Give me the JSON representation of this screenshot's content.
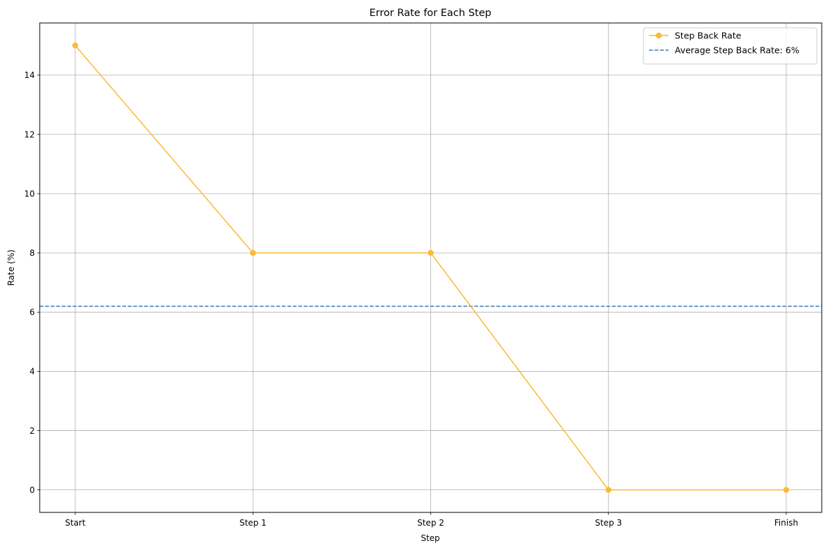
{
  "chart_data": {
    "type": "line",
    "title": "Error Rate for Each Step",
    "xlabel": "Step",
    "ylabel": "Rate (%)",
    "categories": [
      "Start",
      "Step 1",
      "Step 2",
      "Step 3",
      "Finish"
    ],
    "series": [
      {
        "name": "Step Back Rate",
        "values": [
          15,
          8,
          8,
          0,
          0
        ],
        "color": "#fbb935",
        "marker": "circle"
      }
    ],
    "reference_line": {
      "name": "Average Step Back Rate: 6%",
      "value": 6.2,
      "color": "#3a7ab5",
      "style": "dashed"
    },
    "yticks": [
      0,
      2,
      4,
      6,
      8,
      10,
      12,
      14
    ],
    "ylim": [
      -0.76,
      15.76
    ],
    "grid": true,
    "legend_position": "top-right"
  }
}
